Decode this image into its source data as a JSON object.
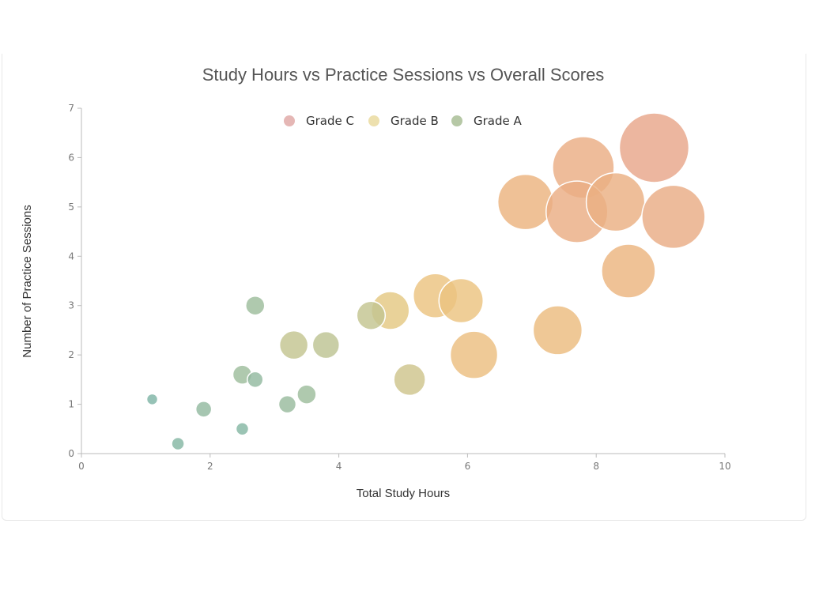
{
  "chart_data": {
    "type": "scatter",
    "title": "Study Hours vs Practice Sessions vs Overall Scores",
    "xlabel": "Total Study Hours",
    "ylabel": "Number of Practice Sessions",
    "xlim": [
      0,
      10
    ],
    "ylim": [
      0,
      7
    ],
    "xticks": [
      "0",
      "2",
      "4",
      "6",
      "8",
      "10"
    ],
    "yticks": [
      "0",
      "1",
      "2",
      "3",
      "4",
      "5",
      "6",
      "7"
    ],
    "grid": false,
    "legend": {
      "placement": "top",
      "items": [
        {
          "name": "Grade C",
          "color": "#e5b7b5"
        },
        {
          "name": "Grade B",
          "color": "#ede0ae"
        },
        {
          "name": "Grade A",
          "color": "#b6c8a6"
        }
      ]
    },
    "size_encodes": "score",
    "color_scale": [
      "#7fb5a6",
      "#b9c394",
      "#ecc980",
      "#ebb37f",
      "#e8a68a"
    ],
    "points": [
      {
        "x": 8.9,
        "y": 6.2,
        "score": 88
      },
      {
        "x": 7.8,
        "y": 5.8,
        "score": 78
      },
      {
        "x": 6.9,
        "y": 5.1,
        "score": 70
      },
      {
        "x": 7.7,
        "y": 4.9,
        "score": 78
      },
      {
        "x": 8.3,
        "y": 5.1,
        "score": 74
      },
      {
        "x": 9.2,
        "y": 4.8,
        "score": 80
      },
      {
        "x": 8.5,
        "y": 3.7,
        "score": 68
      },
      {
        "x": 7.4,
        "y": 2.5,
        "score": 62
      },
      {
        "x": 6.1,
        "y": 2.0,
        "score": 60
      },
      {
        "x": 5.5,
        "y": 3.2,
        "score": 56
      },
      {
        "x": 5.9,
        "y": 3.1,
        "score": 56
      },
      {
        "x": 4.8,
        "y": 2.9,
        "score": 48
      },
      {
        "x": 4.5,
        "y": 2.8,
        "score": 36
      },
      {
        "x": 5.1,
        "y": 1.5,
        "score": 40
      },
      {
        "x": 3.8,
        "y": 2.2,
        "score": 34
      },
      {
        "x": 3.3,
        "y": 2.2,
        "score": 36
      },
      {
        "x": 2.7,
        "y": 3.0,
        "score": 24
      },
      {
        "x": 2.5,
        "y": 1.6,
        "score": 24
      },
      {
        "x": 2.7,
        "y": 1.5,
        "score": 20
      },
      {
        "x": 3.5,
        "y": 1.2,
        "score": 24
      },
      {
        "x": 3.2,
        "y": 1.0,
        "score": 22
      },
      {
        "x": 1.9,
        "y": 0.9,
        "score": 20
      },
      {
        "x": 2.5,
        "y": 0.5,
        "score": 16
      },
      {
        "x": 1.5,
        "y": 0.2,
        "score": 16
      },
      {
        "x": 1.1,
        "y": 1.1,
        "score": 14
      }
    ]
  }
}
